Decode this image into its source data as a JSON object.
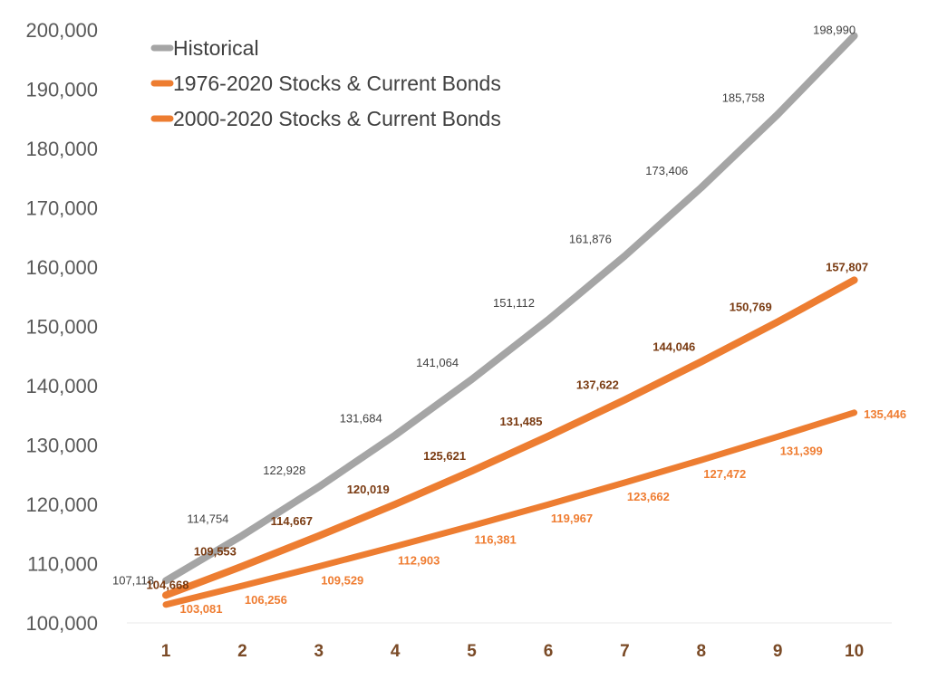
{
  "chart_data": {
    "type": "line",
    "title": "",
    "xlabel": "",
    "ylabel": "",
    "x": [
      1,
      2,
      3,
      4,
      5,
      6,
      7,
      8,
      9,
      10
    ],
    "ylim": [
      100000,
      200000
    ],
    "yticks": [
      100000,
      110000,
      120000,
      130000,
      140000,
      150000,
      160000,
      170000,
      180000,
      190000,
      200000
    ],
    "ytick_labels": [
      "100,000",
      "110,000",
      "120,000",
      "130,000",
      "140,000",
      "150,000",
      "160,000",
      "170,000",
      "180,000",
      "190,000",
      "200,000"
    ],
    "xtick_labels": [
      "1",
      "2",
      "3",
      "4",
      "5",
      "6",
      "7",
      "8",
      "9",
      "10"
    ],
    "grid": false,
    "legend_position": "top-left",
    "series": [
      {
        "name": "Historical",
        "color": "#a5a5a5",
        "values": [
          107118,
          114754,
          122928,
          131684,
          141064,
          151112,
          161876,
          173406,
          185758,
          198990
        ],
        "labels": [
          "107,118",
          "114,754",
          "122,928",
          "131,684",
          "141,064",
          "151,112",
          "161,876",
          "173,406",
          "185,758",
          "198,990"
        ]
      },
      {
        "name": "1976-2020 Stocks & Current Bonds",
        "color": "#ed7d31",
        "values": [
          104668,
          109553,
          114667,
          120019,
          125621,
          131485,
          137622,
          144046,
          150769,
          157807
        ],
        "labels": [
          "104,668",
          "109,553",
          "114,667",
          "120,019",
          "125,621",
          "131,485",
          "137,622",
          "144,046",
          "150,769",
          "157,807"
        ]
      },
      {
        "name": "2000-2020 Stocks & Current Bonds",
        "color": "#ed7d31",
        "values": [
          103081,
          106256,
          109529,
          112903,
          116381,
          119967,
          123662,
          127472,
          131399,
          135446
        ],
        "labels": [
          "103,081",
          "106,256",
          "109,529",
          "112,903",
          "116,381",
          "119,967",
          "123,662",
          "127,472",
          "131,399",
          "135,446"
        ]
      }
    ]
  }
}
